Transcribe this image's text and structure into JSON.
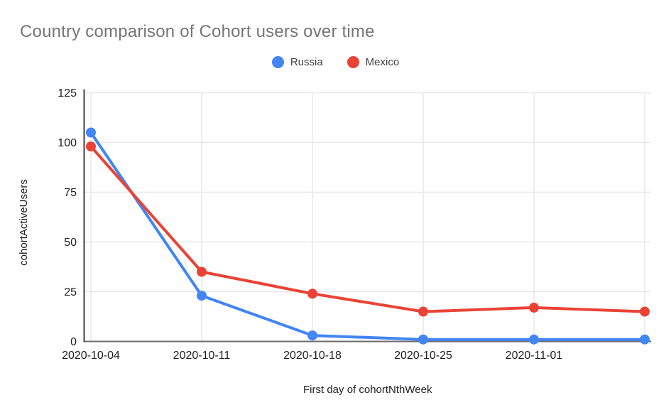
{
  "chart_data": {
    "type": "line",
    "title": "Country comparison of Cohort users over time",
    "xlabel": "First day of cohortNthWeek",
    "ylabel": "cohortActiveUsers",
    "categories": [
      "2020-10-04",
      "2020-10-11",
      "2020-10-18",
      "2020-10-25",
      "2020-11-01",
      ""
    ],
    "series": [
      {
        "name": "Russia",
        "color": "#4285F4",
        "values": [
          105,
          23,
          3,
          1,
          1,
          1
        ]
      },
      {
        "name": "Mexico",
        "color": "#EA4335",
        "values": [
          98,
          35,
          24,
          15,
          17,
          15
        ]
      }
    ],
    "yticks": [
      0,
      25,
      50,
      75,
      100,
      125
    ],
    "ylim": [
      0,
      125
    ],
    "grid": true,
    "legend_position": "top",
    "colors": {
      "title": "#757575",
      "tick_labels": "#222222",
      "axis_titles": "#202124",
      "gridlines": "#e8e8e8",
      "x_axis_line": "#6b6b6b",
      "y_axis_line": "#424242",
      "legend_labels": "#424242",
      "background": "#ffffff"
    }
  }
}
